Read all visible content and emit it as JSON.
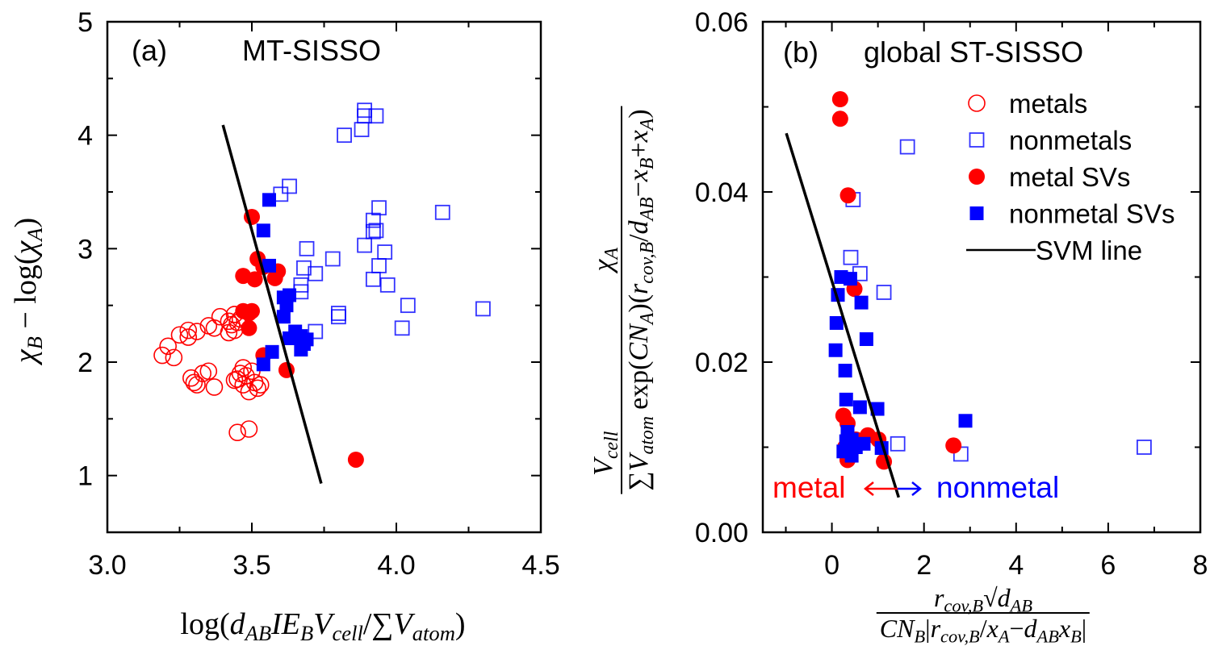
{
  "chart_data": [
    {
      "type": "scatter",
      "panel_label": "(a)",
      "title": "MT-SISSO",
      "xlabel": "log(d_{AB}IE_{B}V_{cell}/∑V_{atom})",
      "ylabel": "χ_{B} − log(χ_{A})",
      "xlim": [
        3.0,
        4.5
      ],
      "ylim": [
        0.5,
        5
      ],
      "xticks": [
        "3.0",
        "3.5",
        "4.0",
        "4.5"
      ],
      "yticks": [
        "1",
        "2",
        "3",
        "4",
        "5"
      ],
      "grid": false,
      "series": [
        {
          "key": "metals",
          "marker": "open-circle",
          "color": "#ff0000",
          "points": [
            [
              3.19,
              2.06
            ],
            [
              3.21,
              2.14
            ],
            [
              3.23,
              2.04
            ],
            [
              3.25,
              2.24
            ],
            [
              3.28,
              2.28
            ],
            [
              3.31,
              2.27
            ],
            [
              3.28,
              2.22
            ],
            [
              3.35,
              2.32
            ],
            [
              3.39,
              2.4
            ],
            [
              3.37,
              2.3
            ],
            [
              3.42,
              2.36
            ],
            [
              3.43,
              2.33
            ],
            [
              3.45,
              2.35
            ],
            [
              3.44,
              2.28
            ],
            [
              3.46,
              2.38
            ],
            [
              3.44,
              2.42
            ],
            [
              3.42,
              2.26
            ],
            [
              3.3,
              1.82
            ],
            [
              3.29,
              1.86
            ],
            [
              3.31,
              1.8
            ],
            [
              3.33,
              1.9
            ],
            [
              3.35,
              1.92
            ],
            [
              3.37,
              1.78
            ],
            [
              3.45,
              1.85
            ],
            [
              3.47,
              1.8
            ],
            [
              3.48,
              1.88
            ],
            [
              3.5,
              1.92
            ],
            [
              3.51,
              1.82
            ],
            [
              3.52,
              1.77
            ],
            [
              3.49,
              1.74
            ],
            [
              3.47,
              1.95
            ],
            [
              3.46,
              1.9
            ],
            [
              3.44,
              1.84
            ],
            [
              3.53,
              1.8
            ],
            [
              3.45,
              1.38
            ],
            [
              3.49,
              1.41
            ]
          ]
        },
        {
          "key": "nonmetals",
          "marker": "open-square",
          "color": "#0000ff",
          "points": [
            [
              3.89,
              4.22
            ],
            [
              3.89,
              4.17
            ],
            [
              3.93,
              4.17
            ],
            [
              3.88,
              4.05
            ],
            [
              3.82,
              4.0
            ],
            [
              3.6,
              3.48
            ],
            [
              3.63,
              3.55
            ],
            [
              3.94,
              3.36
            ],
            [
              3.92,
              3.25
            ],
            [
              3.92,
              3.15
            ],
            [
              3.93,
              3.16
            ],
            [
              3.96,
              2.97
            ],
            [
              3.89,
              3.03
            ],
            [
              3.94,
              2.85
            ],
            [
              3.92,
              2.73
            ],
            [
              3.97,
              2.68
            ],
            [
              4.16,
              3.32
            ],
            [
              4.3,
              2.47
            ],
            [
              4.04,
              2.5
            ],
            [
              4.02,
              2.3
            ],
            [
              3.69,
              3.0
            ],
            [
              3.68,
              2.83
            ],
            [
              3.72,
              2.78
            ],
            [
              3.78,
              2.91
            ],
            [
              3.8,
              2.43
            ],
            [
              3.8,
              2.4
            ],
            [
              3.67,
              2.68
            ],
            [
              3.67,
              2.62
            ],
            [
              3.72,
              2.27
            ]
          ]
        },
        {
          "key": "metal SVs",
          "marker": "filled-circle",
          "color": "#ff0000",
          "points": [
            [
              3.5,
              3.28
            ],
            [
              3.52,
              2.91
            ],
            [
              3.47,
              2.76
            ],
            [
              3.51,
              2.73
            ],
            [
              3.58,
              2.74
            ],
            [
              3.59,
              2.8
            ],
            [
              3.54,
              2.84
            ],
            [
              3.49,
              2.43
            ],
            [
              3.49,
              2.3
            ],
            [
              3.5,
              2.45
            ],
            [
              3.47,
              2.45
            ],
            [
              3.54,
              2.06
            ],
            [
              3.62,
              1.93
            ],
            [
              3.86,
              1.14
            ]
          ]
        },
        {
          "key": "nonmetal SVs",
          "marker": "filled-square",
          "color": "#0000ff",
          "points": [
            [
              3.56,
              3.43
            ],
            [
              3.54,
              3.16
            ],
            [
              3.56,
              2.85
            ],
            [
              3.61,
              2.57
            ],
            [
              3.63,
              2.59
            ],
            [
              3.62,
              2.5
            ],
            [
              3.61,
              2.4
            ],
            [
              3.63,
              2.21
            ],
            [
              3.67,
              2.23
            ],
            [
              3.68,
              2.16
            ],
            [
              3.69,
              2.2
            ],
            [
              3.67,
              2.11
            ],
            [
              3.65,
              2.27
            ],
            [
              3.57,
              2.09
            ],
            [
              3.54,
              1.98
            ]
          ]
        }
      ],
      "svm_line": [
        [
          3.4,
          4.09
        ],
        [
          3.74,
          0.93
        ]
      ]
    },
    {
      "type": "scatter",
      "panel_label": "(b)",
      "title": "global ST-SISSO",
      "xlabel": {
        "num": "r_{cov,B}√d_{AB}",
        "den": "CN_{B}|r_{cov,B}/x_{A}−d_{AB}x_{B}|"
      },
      "ylabel": {
        "pre_num": "V_{cell}",
        "pre_den": "∑V_{atom}",
        "num": "χ_{A}",
        "den": "exp(CN_{A})(r_{cov,B}/d_{AB}−x_{B}+x_{A})"
      },
      "xlim": [
        -1.5,
        8
      ],
      "ylim": [
        0,
        0.06
      ],
      "xticks": [
        "0",
        "2",
        "4",
        "6",
        "8"
      ],
      "yticks": [
        "0.00",
        "0.02",
        "0.04",
        "0.06"
      ],
      "grid": false,
      "legend": {
        "placement": "top-right",
        "entries": [
          "metals",
          "nonmetals",
          "metal SVs",
          "nonmetal SVs",
          "SVM line"
        ]
      },
      "annotations": {
        "left": "metal",
        "right": "nonmetal",
        "left_color": "#ff0000",
        "right_color": "#0000ff"
      },
      "series": [
        {
          "key": "metals",
          "marker": "open-circle",
          "color": "#ff0000",
          "points": []
        },
        {
          "key": "nonmetals",
          "marker": "open-square",
          "color": "#0000ff",
          "points": [
            [
              1.64,
              0.0453
            ],
            [
              0.46,
              0.0391
            ],
            [
              0.41,
              0.0323
            ],
            [
              0.61,
              0.0304
            ],
            [
              1.13,
              0.0282
            ],
            [
              1.43,
              0.0104
            ],
            [
              2.8,
              0.0092
            ],
            [
              6.78,
              0.01
            ]
          ]
        },
        {
          "key": "metal SVs",
          "marker": "filled-circle",
          "color": "#ff0000",
          "points": [
            [
              0.18,
              0.0509
            ],
            [
              0.18,
              0.0486
            ],
            [
              0.35,
              0.0396
            ],
            [
              0.49,
              0.0286
            ],
            [
              2.64,
              0.0102
            ],
            [
              0.29,
              0.01
            ],
            [
              0.34,
              0.0085
            ],
            [
              0.34,
              0.0128
            ],
            [
              0.52,
              0.0109
            ],
            [
              0.78,
              0.0114
            ],
            [
              1.01,
              0.0109
            ],
            [
              1.13,
              0.0083
            ],
            [
              0.25,
              0.0137
            ]
          ]
        },
        {
          "key": "nonmetal SVs",
          "marker": "filled-square",
          "color": "#0000ff",
          "points": [
            [
              0.2,
              0.03
            ],
            [
              0.4,
              0.0298
            ],
            [
              0.13,
              0.0279
            ],
            [
              0.64,
              0.027
            ],
            [
              0.1,
              0.0246
            ],
            [
              0.75,
              0.0227
            ],
            [
              0.08,
              0.0214
            ],
            [
              0.29,
              0.019
            ],
            [
              0.31,
              0.0156
            ],
            [
              0.61,
              0.0147
            ],
            [
              0.99,
              0.0145
            ],
            [
              2.9,
              0.0131
            ],
            [
              0.34,
              0.0118
            ],
            [
              0.43,
              0.0109
            ],
            [
              0.52,
              0.01
            ],
            [
              0.69,
              0.0104
            ],
            [
              1.08,
              0.0099
            ],
            [
              0.43,
              0.009
            ],
            [
              0.25,
              0.0095
            ],
            [
              0.31,
              0.0107
            ]
          ]
        }
      ],
      "svm_line": [
        [
          -0.99,
          0.0469
        ],
        [
          1.45,
          0.0041
        ]
      ]
    }
  ]
}
